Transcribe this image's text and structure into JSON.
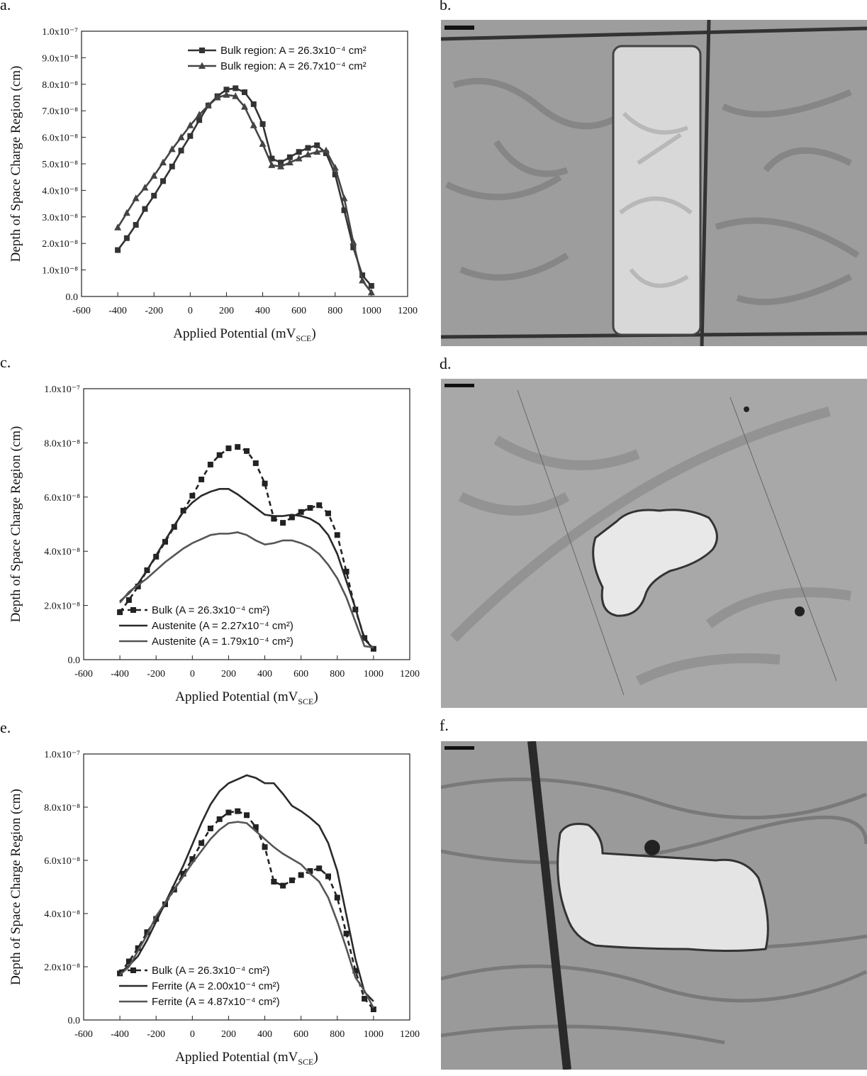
{
  "chart_data": [
    {
      "type": "line",
      "label": "a.",
      "ylabel": "Depth of Space Charge Region (cm)",
      "xlabel": [
        "Applied Potential (mV",
        "SCE",
        ")"
      ],
      "xlim": [
        -600,
        1200
      ],
      "xticks": [
        -600,
        -400,
        -200,
        0,
        200,
        400,
        600,
        800,
        1000,
        1200
      ],
      "ylim": [
        0,
        1e-07
      ],
      "yticks": [
        {
          "value": 0,
          "label": "0.0"
        },
        {
          "value": 1e-08,
          "label": "1.0x10⁻⁸"
        },
        {
          "value": 2e-08,
          "label": "2.0x10⁻⁸"
        },
        {
          "value": 3e-08,
          "label": "3.0x10⁻⁸"
        },
        {
          "value": 4e-08,
          "label": "4.0x10⁻⁸"
        },
        {
          "value": 5e-08,
          "label": "5.0x10⁻⁸"
        },
        {
          "value": 6e-08,
          "label": "6.0x10⁻⁸"
        },
        {
          "value": 7e-08,
          "label": "7.0x10⁻⁸"
        },
        {
          "value": 8e-08,
          "label": "8.0x10⁻⁸"
        },
        {
          "value": 9e-08,
          "label": "9.0x10⁻⁸"
        },
        {
          "value": 1e-07,
          "label": "1.0x10⁻⁷"
        }
      ],
      "legend": "upper right",
      "x": [
        -400,
        -350,
        -300,
        -250,
        -200,
        -150,
        -100,
        -50,
        0,
        50,
        100,
        150,
        200,
        250,
        300,
        350,
        400,
        450,
        500,
        550,
        600,
        650,
        700,
        750,
        800,
        850,
        900,
        950,
        1000
      ],
      "series": [
        {
          "name": "Bulk region: A = 26.3x10⁻⁴ cm²",
          "color": "#333333",
          "marker": "square",
          "dashed": false,
          "values": [
            1.75e-08,
            2.2e-08,
            2.7e-08,
            3.3e-08,
            3.8e-08,
            4.35e-08,
            4.9e-08,
            5.5e-08,
            6.05e-08,
            6.65e-08,
            7.2e-08,
            7.55e-08,
            7.8e-08,
            7.85e-08,
            7.7e-08,
            7.25e-08,
            6.5e-08,
            5.2e-08,
            5.05e-08,
            5.25e-08,
            5.45e-08,
            5.6e-08,
            5.7e-08,
            5.4e-08,
            4.6e-08,
            3.25e-08,
            1.85e-08,
            8e-09,
            4e-09
          ]
        },
        {
          "name": "Bulk region: A = 26.7x10⁻⁴ cm²",
          "color": "#444444",
          "marker": "triangle",
          "dashed": false,
          "values": [
            2.6e-08,
            3.15e-08,
            3.7e-08,
            4.1e-08,
            4.55e-08,
            5.05e-08,
            5.55e-08,
            6e-08,
            6.45e-08,
            6.85e-08,
            7.2e-08,
            7.5e-08,
            7.6e-08,
            7.55e-08,
            7.15e-08,
            6.45e-08,
            5.75e-08,
            4.95e-08,
            4.9e-08,
            5.05e-08,
            5.2e-08,
            5.35e-08,
            5.45e-08,
            5.5e-08,
            4.85e-08,
            3.7e-08,
            2.05e-08,
            6e-09,
            1.5e-09
          ]
        }
      ]
    },
    {
      "type": "line",
      "label": "c.",
      "ylabel": "Depth of Space Charge Region (cm)",
      "xlabel": [
        "Applied Potential (mV",
        "SCE",
        ")"
      ],
      "xlim": [
        -600,
        1200
      ],
      "xticks": [
        -600,
        -400,
        -200,
        0,
        200,
        400,
        600,
        800,
        1000,
        1200
      ],
      "ylim": [
        0,
        1e-07
      ],
      "yticks": [
        {
          "value": 0,
          "label": "0.0"
        },
        {
          "value": 2e-08,
          "label": "2.0x10⁻⁸"
        },
        {
          "value": 4e-08,
          "label": "4.0x10⁻⁸"
        },
        {
          "value": 6e-08,
          "label": "6.0x10⁻⁸"
        },
        {
          "value": 8e-08,
          "label": "8.0x10⁻⁸"
        },
        {
          "value": 1e-07,
          "label": "1.0x10⁻⁷"
        }
      ],
      "legend": "lower left",
      "x": [
        -400,
        -350,
        -300,
        -250,
        -200,
        -150,
        -100,
        -50,
        0,
        50,
        100,
        150,
        200,
        250,
        300,
        350,
        400,
        450,
        500,
        550,
        600,
        650,
        700,
        750,
        800,
        850,
        900,
        950,
        1000
      ],
      "series": [
        {
          "name": "Bulk (A = 26.3x10⁻⁴ cm²)",
          "color": "#222222",
          "marker": "square",
          "dashed": true,
          "values": [
            1.75e-08,
            2.2e-08,
            2.7e-08,
            3.3e-08,
            3.8e-08,
            4.35e-08,
            4.9e-08,
            5.5e-08,
            6.05e-08,
            6.65e-08,
            7.2e-08,
            7.55e-08,
            7.8e-08,
            7.85e-08,
            7.7e-08,
            7.25e-08,
            6.5e-08,
            5.2e-08,
            5.05e-08,
            5.25e-08,
            5.45e-08,
            5.6e-08,
            5.7e-08,
            5.4e-08,
            4.6e-08,
            3.25e-08,
            1.85e-08,
            8e-09,
            4e-09
          ]
        },
        {
          "name": "Austenite (A = 2.27x10⁻⁴ cm²)",
          "color": "#2a2a2a",
          "marker": null,
          "dashed": false,
          "values": [
            2.15e-08,
            2.45e-08,
            2.8e-08,
            3.3e-08,
            3.85e-08,
            4.4e-08,
            4.95e-08,
            5.45e-08,
            5.8e-08,
            6.05e-08,
            6.2e-08,
            6.3e-08,
            6.3e-08,
            6.1e-08,
            5.85e-08,
            5.6e-08,
            5.35e-08,
            5.3e-08,
            5.3e-08,
            5.35e-08,
            5.3e-08,
            5.2e-08,
            5e-08,
            4.6e-08,
            3.9e-08,
            2.9e-08,
            1.9e-08,
            7.5e-09,
            4e-09
          ]
        },
        {
          "name": "Austenite (A = 1.79x10⁻⁴ cm²)",
          "color": "#555555",
          "marker": null,
          "dashed": false,
          "values": [
            2.1e-08,
            2.5e-08,
            2.75e-08,
            3e-08,
            3.3e-08,
            3.6e-08,
            3.85e-08,
            4.1e-08,
            4.3e-08,
            4.45e-08,
            4.6e-08,
            4.65e-08,
            4.65e-08,
            4.7e-08,
            4.6e-08,
            4.4e-08,
            4.25e-08,
            4.3e-08,
            4.4e-08,
            4.4e-08,
            4.3e-08,
            4.15e-08,
            3.9e-08,
            3.5e-08,
            3e-08,
            2.3e-08,
            1.4e-08,
            5e-09,
            4.5e-09
          ]
        }
      ]
    },
    {
      "type": "line",
      "label": "e.",
      "ylabel": "Depth of Space Charge Region (cm)",
      "xlabel": [
        "Applied Potential (mV",
        "SCE",
        ")"
      ],
      "xlim": [
        -600,
        1200
      ],
      "xticks": [
        -600,
        -400,
        -200,
        0,
        200,
        400,
        600,
        800,
        1000,
        1200
      ],
      "ylim": [
        0,
        1e-07
      ],
      "yticks": [
        {
          "value": 0,
          "label": "0.0"
        },
        {
          "value": 2e-08,
          "label": "2.0x10⁻⁸"
        },
        {
          "value": 4e-08,
          "label": "4.0x10⁻⁸"
        },
        {
          "value": 6e-08,
          "label": "6.0x10⁻⁸"
        },
        {
          "value": 8e-08,
          "label": "8.0x10⁻⁸"
        },
        {
          "value": 1e-07,
          "label": "1.0x10⁻⁷"
        }
      ],
      "legend": "lower left",
      "x": [
        -400,
        -350,
        -300,
        -250,
        -200,
        -150,
        -100,
        -50,
        0,
        50,
        100,
        150,
        200,
        250,
        300,
        350,
        400,
        450,
        500,
        550,
        600,
        650,
        700,
        750,
        800,
        850,
        900,
        950,
        1000
      ],
      "series": [
        {
          "name": "Bulk (A = 26.3x10⁻⁴ cm²)",
          "color": "#222222",
          "marker": "square",
          "dashed": true,
          "values": [
            1.75e-08,
            2.2e-08,
            2.7e-08,
            3.3e-08,
            3.8e-08,
            4.35e-08,
            4.9e-08,
            5.5e-08,
            6.05e-08,
            6.65e-08,
            7.2e-08,
            7.55e-08,
            7.8e-08,
            7.85e-08,
            7.7e-08,
            7.25e-08,
            6.5e-08,
            5.2e-08,
            5.05e-08,
            5.25e-08,
            5.45e-08,
            5.6e-08,
            5.7e-08,
            5.4e-08,
            4.6e-08,
            3.25e-08,
            1.85e-08,
            8e-09,
            4e-09
          ]
        },
        {
          "name": "Ferrite (A = 2.00x10⁻⁴ cm²)",
          "color": "#2a2a2a",
          "marker": null,
          "dashed": false,
          "values": [
            1.75e-08,
            2.05e-08,
            2.4e-08,
            3e-08,
            3.7e-08,
            4.4e-08,
            5.1e-08,
            5.8e-08,
            6.6e-08,
            7.4e-08,
            8.1e-08,
            8.6e-08,
            8.9e-08,
            9.05e-08,
            9.2e-08,
            9.1e-08,
            8.9e-08,
            8.9e-08,
            8.5e-08,
            8.05e-08,
            7.85e-08,
            7.6e-08,
            7.3e-08,
            6.65e-08,
            5.6e-08,
            3.95e-08,
            2.3e-08,
            1.05e-08,
            7e-09
          ]
        },
        {
          "name": "Ferrite (A = 4.87x10⁻⁴ cm²)",
          "color": "#555555",
          "marker": null,
          "dashed": false,
          "values": [
            1.7e-08,
            2e-08,
            2.6e-08,
            3.2e-08,
            3.9e-08,
            4.4e-08,
            4.9e-08,
            5.4e-08,
            5.9e-08,
            6.35e-08,
            6.8e-08,
            7.15e-08,
            7.4e-08,
            7.45e-08,
            7.4e-08,
            7.1e-08,
            6.8e-08,
            6.5e-08,
            6.25e-08,
            6.05e-08,
            5.85e-08,
            5.5e-08,
            5.2e-08,
            4.6e-08,
            3.7e-08,
            2.7e-08,
            1.6e-08,
            1.1e-08,
            4.5e-09
          ]
        }
      ]
    }
  ],
  "images": [
    {
      "label": "b."
    },
    {
      "label": "d."
    },
    {
      "label": "f."
    }
  ]
}
